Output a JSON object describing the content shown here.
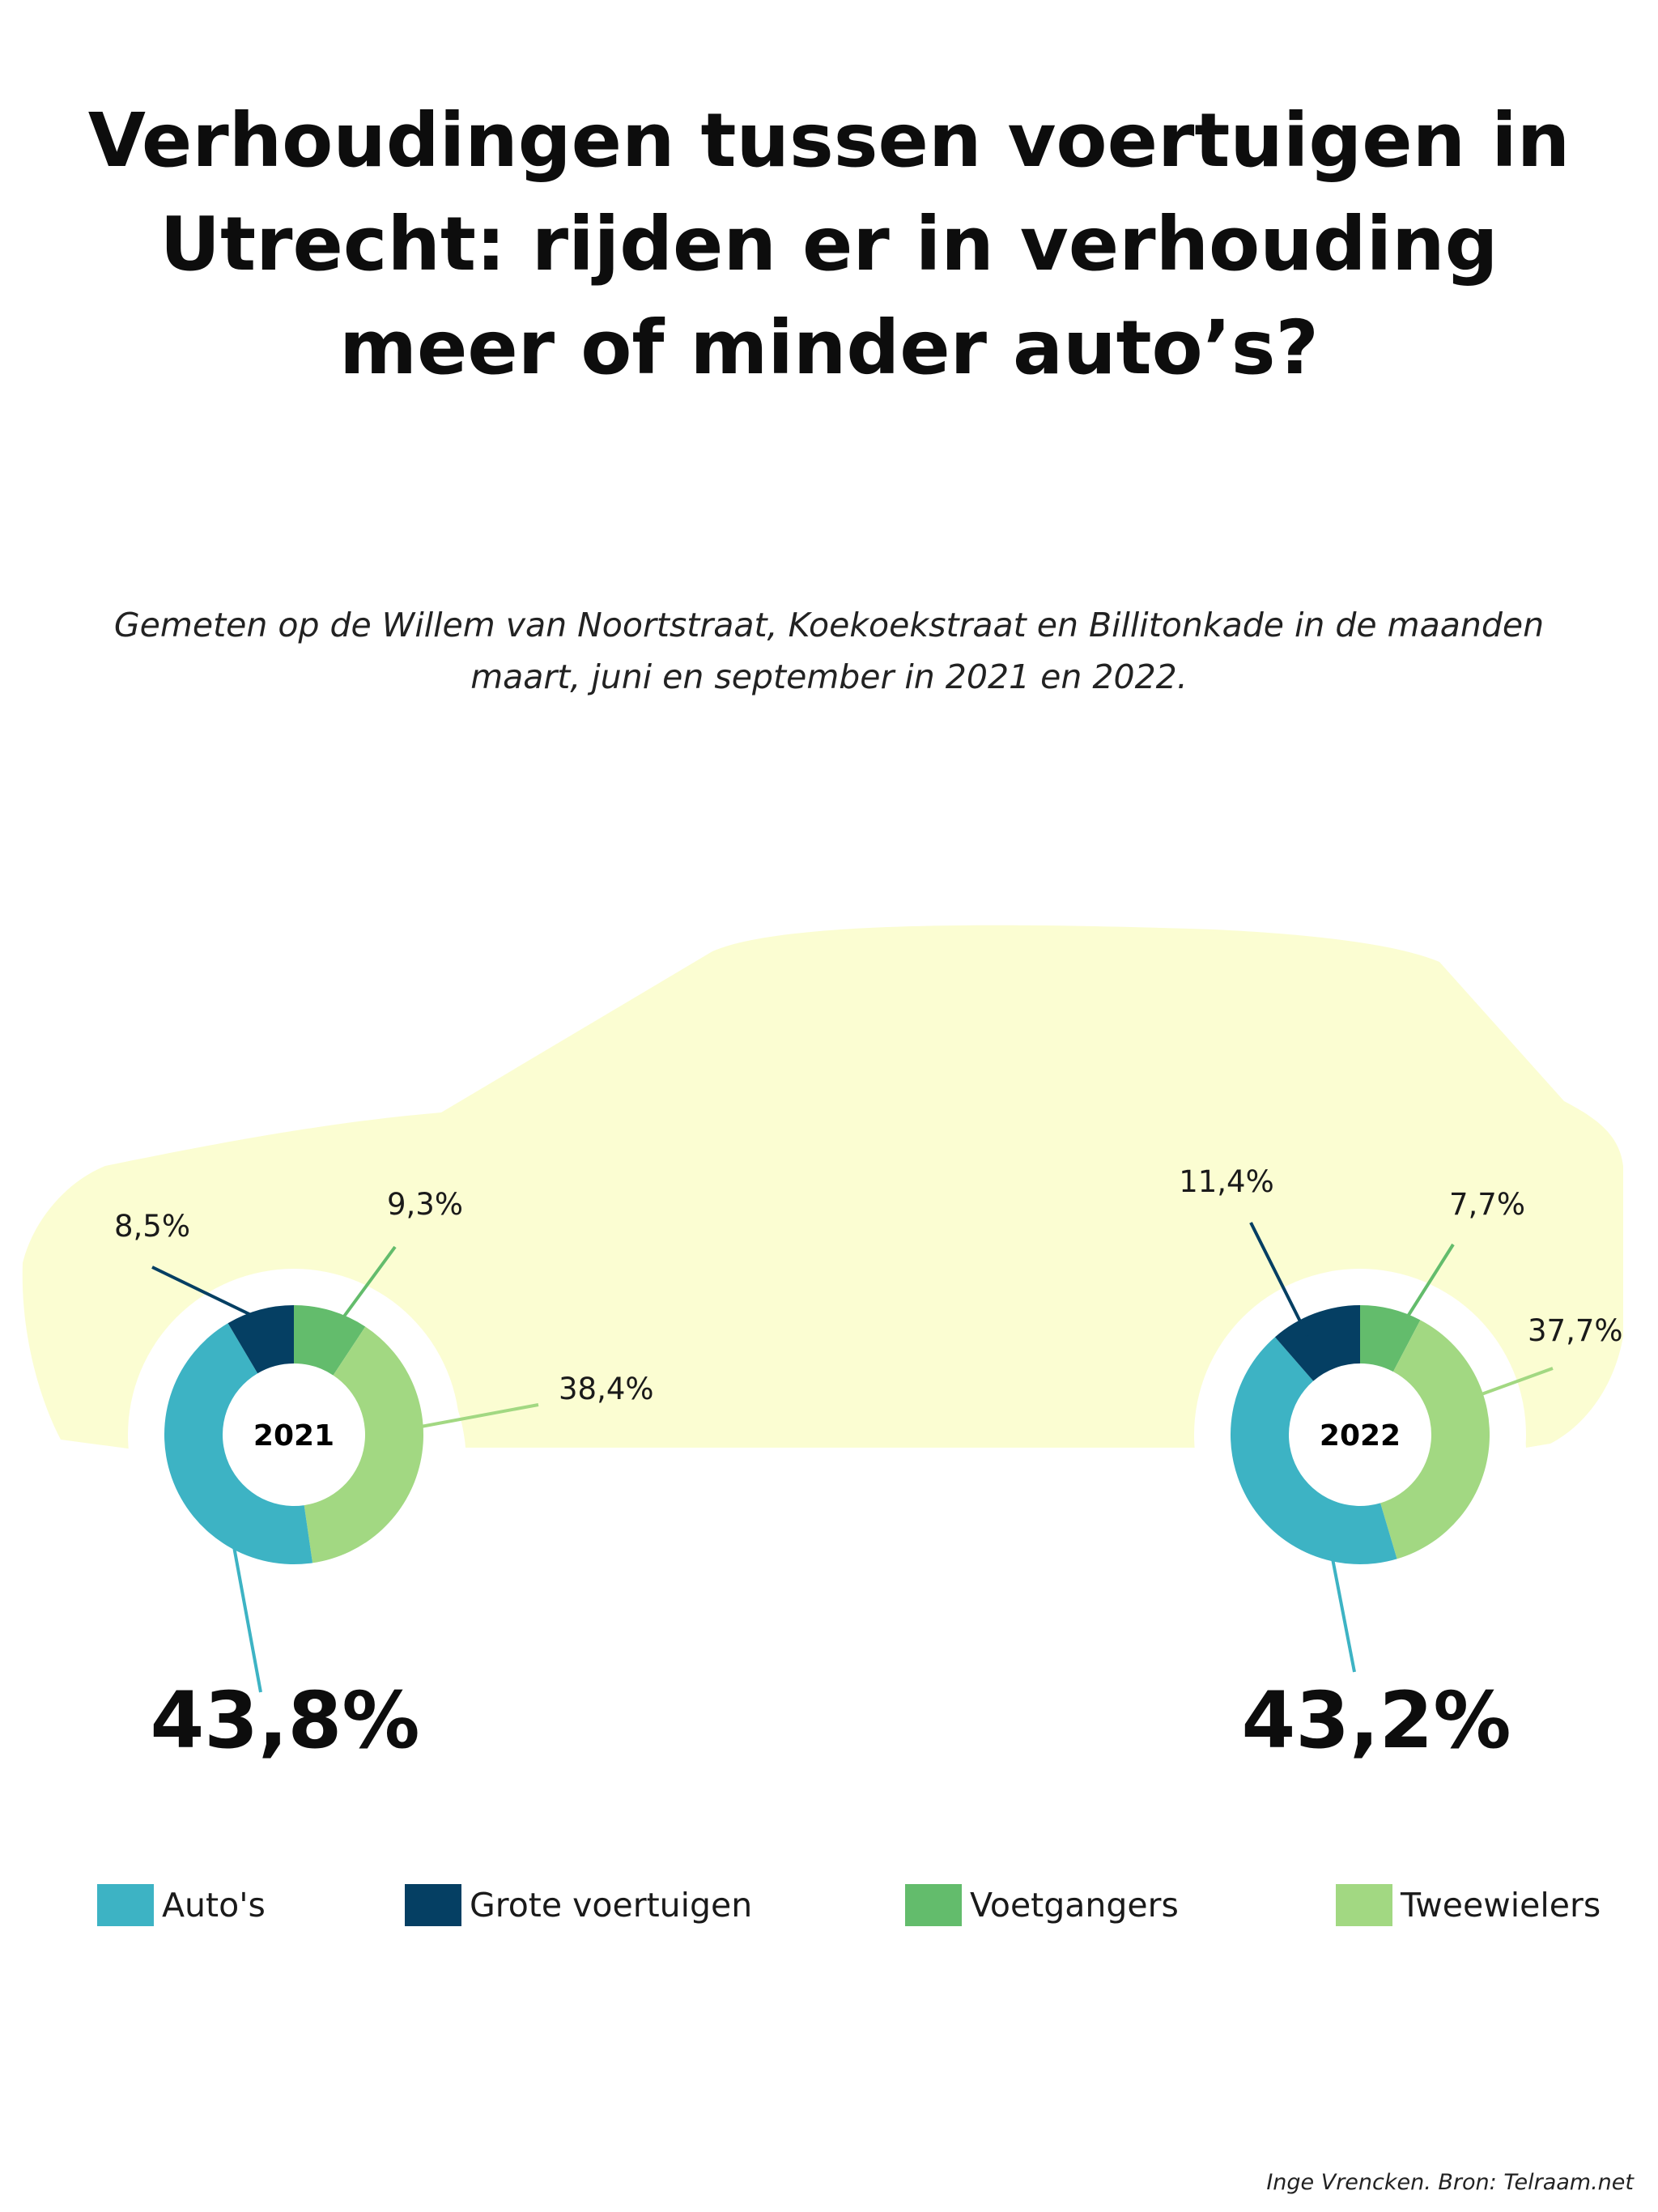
{
  "title": "Verhoudingen tussen voertuigen in Utrecht: rijden er in verhouding meer of minder auto’s?",
  "subtitle": "Gemeten op de Willem van Noortstraat, Koekoekstraat en Billitonkade in de maanden maart, juni en september in 2021 en 2022.",
  "source": "Inge Vrencken. Bron: Telraam.net",
  "colors": {
    "autos": "#3db3c4",
    "grote_voertuigen": "#053f63",
    "voetgangers": "#63bc6c",
    "tweewielers": "#a2d882",
    "car_silhouette": "#fbfdd2"
  },
  "legend": [
    {
      "label": "Auto's",
      "color": "#3db3c4"
    },
    {
      "label": "Grote voertuigen",
      "color": "#053f63"
    },
    {
      "label": "Voetgangers",
      "color": "#63bc6c"
    },
    {
      "label": "Tweewielers",
      "color": "#a2d882"
    }
  ],
  "chart_data": [
    {
      "type": "pie",
      "title": "2021",
      "categories": [
        "Voetgangers",
        "Tweewielers",
        "Auto's",
        "Grote voertuigen"
      ],
      "values": [
        9.3,
        38.4,
        43.8,
        8.5
      ],
      "labels": [
        "9,3%",
        "38,4%",
        "43,8%",
        "8,5%"
      ]
    },
    {
      "type": "pie",
      "title": "2022",
      "categories": [
        "Voetgangers",
        "Tweewielers",
        "Auto's",
        "Grote voertuigen"
      ],
      "values": [
        7.7,
        37.7,
        43.2,
        11.4
      ],
      "labels": [
        "7,7%",
        "37,7%",
        "43,2%",
        "11,4%"
      ]
    }
  ]
}
